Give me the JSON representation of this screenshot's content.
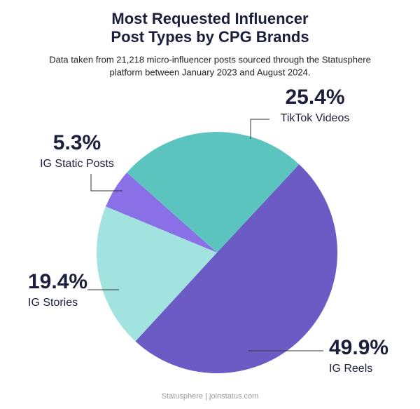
{
  "chart_data": {
    "type": "pie",
    "title": [
      "Most Requested Influencer",
      "Post Types by CPG Brands"
    ],
    "subtitle": [
      "Data taken from 21,218 micro-influencer posts sourced through the Statusphere",
      "platform between January 2023 and August 2024."
    ],
    "categories": [
      "IG Reels",
      "IG Stories",
      "IG Static Posts",
      "TikTok Videos"
    ],
    "values": [
      49.9,
      19.4,
      5.3,
      25.4
    ],
    "value_labels": [
      "49.9%",
      "19.4%",
      "5.3%",
      "25.4%"
    ],
    "colors": [
      "#6c5bc4",
      "#a2e3df",
      "#8a70e6",
      "#5cc4bf"
    ],
    "footer": "Statusphere | joinstatus.com"
  }
}
